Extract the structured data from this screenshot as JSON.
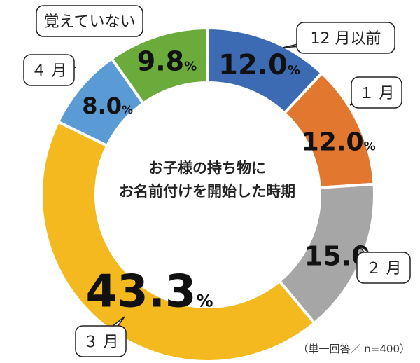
{
  "chart_data": {
    "type": "pie",
    "title_lines": [
      "お子様の持ち物に",
      "お名前付けを開始した時期"
    ],
    "unit": "%",
    "slices": [
      {
        "label": "12月以前",
        "display_label": "12 月以前",
        "value": 12.0,
        "display": "12.0",
        "color": "#3d6bb3"
      },
      {
        "label": "1月",
        "display_label": "１ 月",
        "value": 12.0,
        "display": "12.0",
        "color": "#e2782f"
      },
      {
        "label": "2月",
        "display_label": "２ 月",
        "value": 15.0,
        "display": "15.0",
        "color": "#a6a6a6"
      },
      {
        "label": "3月",
        "display_label": "３ 月",
        "value": 43.3,
        "display": "43.3",
        "color": "#f3b91e"
      },
      {
        "label": "4月",
        "display_label": "４ 月",
        "value": 8.0,
        "display": "8.0",
        "color": "#5b9bd5"
      },
      {
        "label": "覚えていない",
        "display_label": "覚えていない",
        "value": 9.8,
        "display": "9.8",
        "color": "#6aab3b"
      }
    ]
  },
  "footnote": "（単一回答／ n=400）"
}
